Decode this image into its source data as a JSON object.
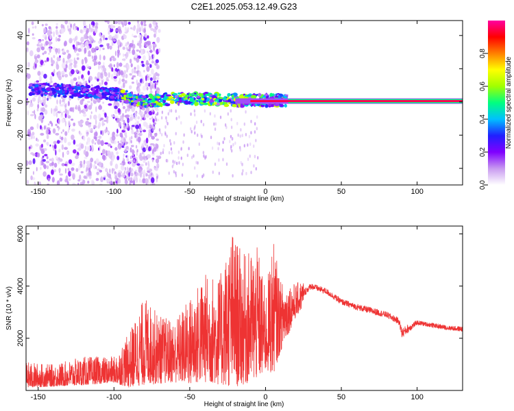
{
  "figure": {
    "title": "C2E1.2025.053.12.49.G23"
  },
  "chart_data": [
    {
      "type": "heatmap",
      "xlabel": "Height of straight line (km)",
      "ylabel": "Frequency (Hz)",
      "xlim": [
        -158,
        130
      ],
      "ylim": [
        -50,
        49
      ],
      "x_ticks": [
        -150,
        -100,
        -50,
        0,
        50,
        100
      ],
      "y_ticks": [
        -40,
        -20,
        0,
        20,
        40
      ],
      "colorbar": {
        "label": "Normalized spectral amplitude",
        "range": [
          0.0,
          1.0
        ],
        "ticks": [
          0.0,
          0.2,
          0.4,
          0.6,
          0.8
        ],
        "tick_labels": [
          "0.0",
          "0.2",
          "0.4",
          "0.6",
          "0.8"
        ],
        "colormap": [
          "#ffffff",
          "#c89af0",
          "#8000ff",
          "#2020ff",
          "#00c0ff",
          "#00ff80",
          "#a0ff00",
          "#ffff00",
          "#ff8000",
          "#ff0000",
          "#ff00a0"
        ]
      },
      "features": [
        {
          "name": "scattered-noise",
          "x_range": [
            -158,
            -95
          ],
          "y_range": [
            -50,
            49
          ],
          "amplitude": 0.2
        },
        {
          "name": "descending-trace",
          "x": [
            -155,
            -100,
            -80,
            -60,
            -40,
            -20,
            0,
            15
          ],
          "y": [
            8,
            5,
            0,
            2,
            2,
            1,
            1,
            1
          ],
          "amplitude": 0.55
        },
        {
          "name": "carrier-line",
          "x_range": [
            15,
            130
          ],
          "y": 0.5,
          "amplitude": 0.95
        }
      ]
    },
    {
      "type": "line",
      "xlabel": "Height of straight line (km)",
      "ylabel": "SNR (10 * v/v)",
      "xlim": [
        -158,
        130
      ],
      "ylim": [
        0,
        6300
      ],
      "x_ticks": [
        -150,
        -100,
        -50,
        0,
        50,
        100
      ],
      "y_ticks": [
        2000,
        4000,
        6000
      ],
      "series": [
        {
          "color": "#ee3333",
          "envelope_x": [
            -158,
            -140,
            -120,
            -100,
            -90,
            -80,
            -70,
            -60,
            -50,
            -40,
            -30,
            -22,
            -15,
            -5,
            0,
            5,
            10,
            20,
            30,
            40,
            50,
            60,
            70,
            80,
            88,
            90,
            100,
            110,
            120,
            130
          ],
          "envelope_low": [
            100,
            150,
            200,
            300,
            100,
            200,
            250,
            300,
            200,
            300,
            200,
            100,
            200,
            400,
            700,
            600,
            1500,
            2800,
            3600,
            3400,
            3000,
            2800,
            2600,
            2500,
            2200,
            1500,
            2300,
            2200,
            2100,
            2000
          ],
          "envelope_high": [
            1100,
            1000,
            1300,
            1300,
            2200,
            3600,
            2900,
            2700,
            3600,
            4500,
            4400,
            6200,
            5200,
            5500,
            3800,
            5800,
            4200,
            4100,
            4400,
            4200,
            3800,
            3600,
            3500,
            3300,
            3100,
            2900,
            2900,
            2800,
            2700,
            2700
          ]
        }
      ]
    }
  ]
}
